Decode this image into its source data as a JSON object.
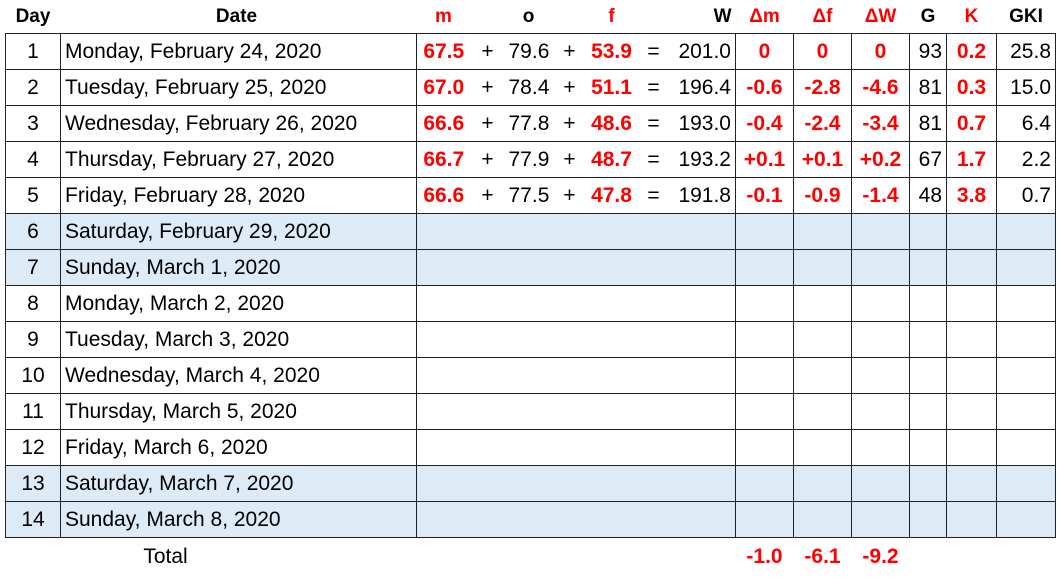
{
  "header": [
    "Day",
    "Date",
    "m",
    "o",
    "f",
    "W",
    "Δm",
    "Δf",
    "ΔW",
    "G",
    "K",
    "GKI"
  ],
  "operators": [
    "+",
    "+",
    "="
  ],
  "rows": [
    {
      "day": "1",
      "date": "Monday, February 24, 2020",
      "m": "67.5",
      "o": "79.6",
      "f": "53.9",
      "W": "201.0",
      "dm": "0",
      "df": "0",
      "dW": "0",
      "G": "93",
      "K": "0.2",
      "GKI": "25.8"
    },
    {
      "day": "2",
      "date": "Tuesday, February 25, 2020",
      "m": "67.0",
      "o": "78.4",
      "f": "51.1",
      "W": "196.4",
      "dm": "-0.6",
      "df": "-2.8",
      "dW": "-4.6",
      "G": "81",
      "K": "0.3",
      "GKI": "15.0"
    },
    {
      "day": "3",
      "date": "Wednesday, February 26, 2020",
      "m": "66.6",
      "o": "77.8",
      "f": "48.6",
      "W": "193.0",
      "dm": "-0.4",
      "df": "-2.4",
      "dW": "-3.4",
      "G": "81",
      "K": "0.7",
      "GKI": "6.4"
    },
    {
      "day": "4",
      "date": "Thursday, February 27, 2020",
      "m": "66.7",
      "o": "77.9",
      "f": "48.7",
      "W": "193.2",
      "dm": "+0.1",
      "df": "+0.1",
      "dW": "+0.2",
      "G": "67",
      "K": "1.7",
      "GKI": "2.2"
    },
    {
      "day": "5",
      "date": "Friday, February 28, 2020",
      "m": "66.6",
      "o": "77.5",
      "f": "47.8",
      "W": "191.8",
      "dm": "-0.1",
      "df": "-0.9",
      "dW": "-1.4",
      "G": "48",
      "K": "3.8",
      "GKI": "0.7"
    },
    {
      "day": "6",
      "date": "Saturday, February 29, 2020"
    },
    {
      "day": "7",
      "date": "Sunday, March 1, 2020"
    },
    {
      "day": "8",
      "date": "Monday, March 2, 2020"
    },
    {
      "day": "9",
      "date": "Tuesday, March 3, 2020"
    },
    {
      "day": "10",
      "date": "Wednesday, March 4, 2020"
    },
    {
      "day": "11",
      "date": "Thursday, March 5, 2020"
    },
    {
      "day": "12",
      "date": "Friday, March 6, 2020"
    },
    {
      "day": "13",
      "date": "Saturday, March 7, 2020"
    },
    {
      "day": "14",
      "date": "Sunday, March 8, 2020"
    }
  ],
  "total": {
    "label": "Total",
    "dm": "-1.0",
    "df": "-6.1",
    "dW": "-9.2"
  }
}
